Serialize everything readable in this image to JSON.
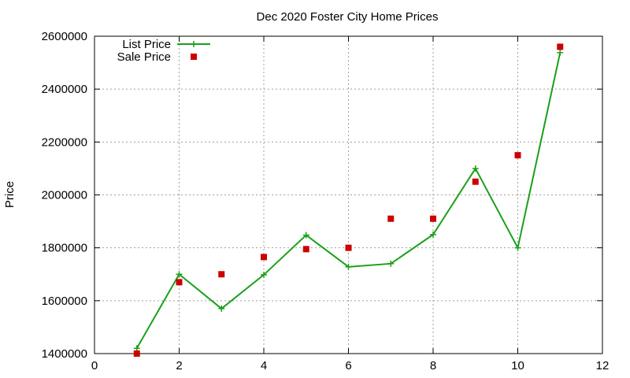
{
  "chart_data": {
    "type": "line",
    "title": "Dec 2020 Foster City Home Prices",
    "xlabel": "",
    "ylabel": "Price",
    "xlim": [
      0,
      12
    ],
    "ylim": [
      1400000,
      2600000
    ],
    "xticks": [
      0,
      2,
      4,
      6,
      8,
      10,
      12
    ],
    "yticks": [
      1400000,
      1600000,
      1800000,
      2000000,
      2200000,
      2400000,
      2600000
    ],
    "grid": true,
    "legend_position": "top-left",
    "series": [
      {
        "name": "List Price",
        "style": "linespoints",
        "marker": "plus",
        "color": "#1aa01a",
        "x": [
          1,
          2,
          3,
          4,
          5,
          6,
          7,
          8,
          9,
          10,
          11
        ],
        "y": [
          1420000,
          1700000,
          1570000,
          1698000,
          1848000,
          1728000,
          1740000,
          1850000,
          2100000,
          1800000,
          2538000
        ]
      },
      {
        "name": "Sale Price",
        "style": "points",
        "marker": "square",
        "color": "#cc0000",
        "x": [
          1,
          2,
          3,
          4,
          5,
          6,
          7,
          8,
          9,
          10,
          11
        ],
        "y": [
          1400000,
          1670000,
          1700000,
          1765000,
          1795000,
          1800000,
          1910000,
          1910000,
          2050000,
          2150000,
          2560000
        ]
      }
    ]
  }
}
